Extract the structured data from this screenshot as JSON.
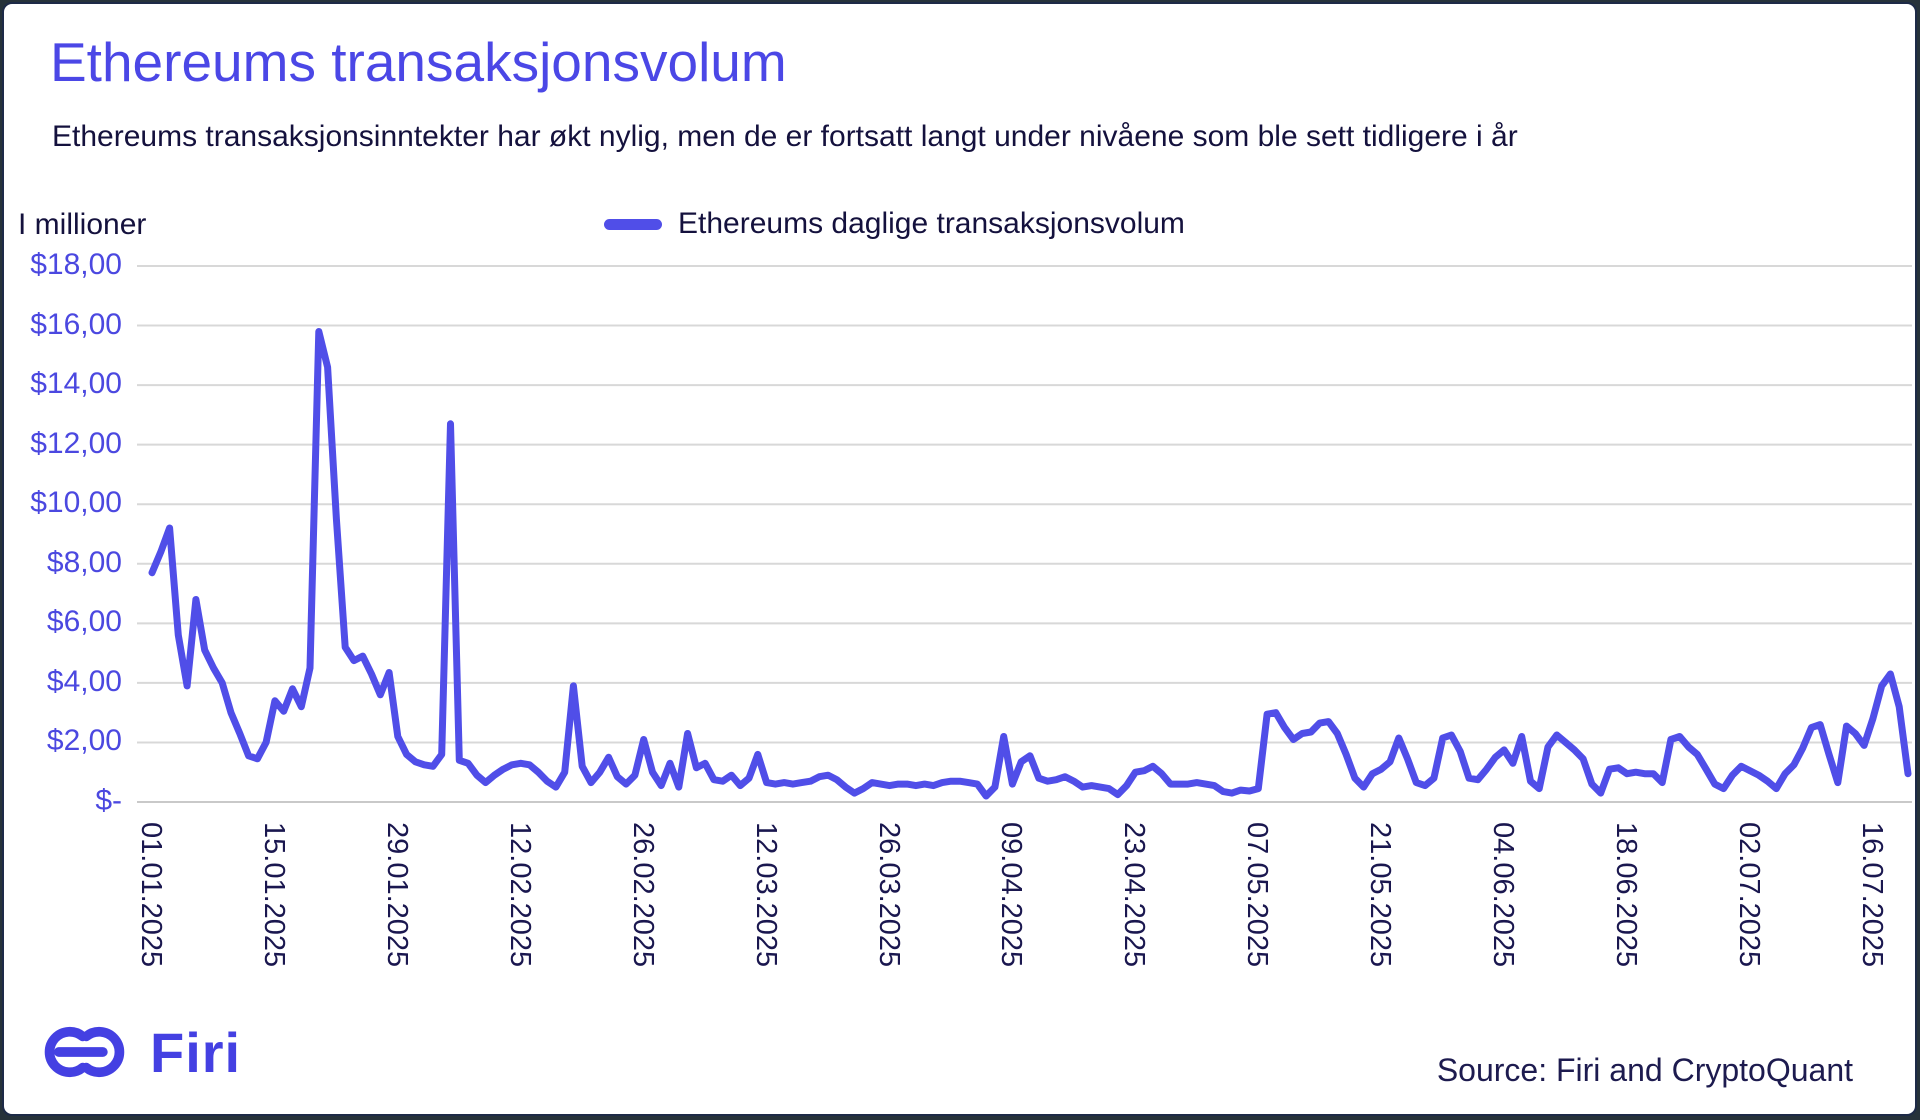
{
  "header": {
    "title": "Ethereums transaksjonsvolum",
    "subtitle": "Ethereums transaksjonsinntekter har økt nylig, men de er fortsatt langt under nivåene som ble sett tidligere i år"
  },
  "chart": {
    "y_axis_unit": "I millioner",
    "legend_label": "Ethereums daglige transaksjonsvolum"
  },
  "footer": {
    "logo_text": "Firi",
    "source": "Source: Firi and CryptoQuant"
  },
  "colors": {
    "accent": "#4b47e6",
    "line": "#504ee8",
    "navy": "#14113d",
    "axis_text": "#1a174f",
    "grid": "#d8d8d8"
  },
  "chart_data": {
    "type": "line",
    "title": "Ethereums transaksjonsvolum",
    "series_name": "Ethereums daglige transaksjonsvolum",
    "xlabel": "",
    "ylabel": "I millioner",
    "ylim": [
      0,
      18
    ],
    "grid": "horizontal",
    "legend_position": "top-center",
    "start_date": "01.01.2025",
    "end_date": "20.07.2025",
    "frequency": "daily",
    "y_tick_labels": [
      "$18,00",
      "$16,00",
      "$14,00",
      "$12,00",
      "$10,00",
      "$8,00",
      "$6,00",
      "$4,00",
      "$2,00",
      "$-"
    ],
    "x_tick_labels": [
      "01.01.2025",
      "15.01.2025",
      "29.01.2025",
      "12.02.2025",
      "26.02.2025",
      "12.03.2025",
      "26.03.2025",
      "09.04.2025",
      "23.04.2025",
      "07.05.2025",
      "21.05.2025",
      "04.06.2025",
      "18.06.2025",
      "02.07.2025",
      "16.07.2025"
    ],
    "x_tick_interval_days": 14,
    "values": [
      7.7,
      8.4,
      9.2,
      5.6,
      3.9,
      6.8,
      5.1,
      4.5,
      4.0,
      3.0,
      2.3,
      1.55,
      1.45,
      2.0,
      3.4,
      3.05,
      3.8,
      3.2,
      4.5,
      15.8,
      14.6,
      9.5,
      5.2,
      4.75,
      4.9,
      4.3,
      3.6,
      4.35,
      2.2,
      1.6,
      1.35,
      1.25,
      1.2,
      1.6,
      12.7,
      1.4,
      1.3,
      0.9,
      0.65,
      0.9,
      1.1,
      1.25,
      1.3,
      1.25,
      1.0,
      0.7,
      0.5,
      1.0,
      3.9,
      1.2,
      0.65,
      1.0,
      1.5,
      0.85,
      0.6,
      0.9,
      2.1,
      1.0,
      0.55,
      1.3,
      0.5,
      2.3,
      1.15,
      1.3,
      0.75,
      0.7,
      0.9,
      0.55,
      0.8,
      1.6,
      0.65,
      0.6,
      0.65,
      0.6,
      0.65,
      0.7,
      0.85,
      0.9,
      0.75,
      0.5,
      0.3,
      0.45,
      0.65,
      0.6,
      0.55,
      0.6,
      0.6,
      0.55,
      0.6,
      0.55,
      0.65,
      0.7,
      0.7,
      0.65,
      0.6,
      0.2,
      0.5,
      2.2,
      0.6,
      1.35,
      1.55,
      0.8,
      0.7,
      0.75,
      0.85,
      0.7,
      0.5,
      0.55,
      0.5,
      0.45,
      0.25,
      0.55,
      1.0,
      1.05,
      1.2,
      0.95,
      0.6,
      0.6,
      0.6,
      0.65,
      0.6,
      0.55,
      0.35,
      0.3,
      0.4,
      0.37,
      0.45,
      2.95,
      3.0,
      2.5,
      2.1,
      2.3,
      2.35,
      2.65,
      2.7,
      2.3,
      1.6,
      0.8,
      0.5,
      0.95,
      1.1,
      1.35,
      2.15,
      1.45,
      0.65,
      0.55,
      0.8,
      2.15,
      2.25,
      1.7,
      0.8,
      0.75,
      1.1,
      1.5,
      1.75,
      1.3,
      2.2,
      0.7,
      0.45,
      1.85,
      2.25,
      2.0,
      1.75,
      1.45,
      0.6,
      0.3,
      1.1,
      1.15,
      0.95,
      1.0,
      0.95,
      0.95,
      0.65,
      2.1,
      2.2,
      1.85,
      1.6,
      1.1,
      0.6,
      0.45,
      0.9,
      1.2,
      1.05,
      0.9,
      0.7,
      0.45,
      0.95,
      1.25,
      1.8,
      2.5,
      2.6,
      1.6,
      0.65,
      2.55,
      2.3,
      1.9,
      2.8,
      3.9,
      4.3,
      3.2,
      0.95
    ]
  }
}
